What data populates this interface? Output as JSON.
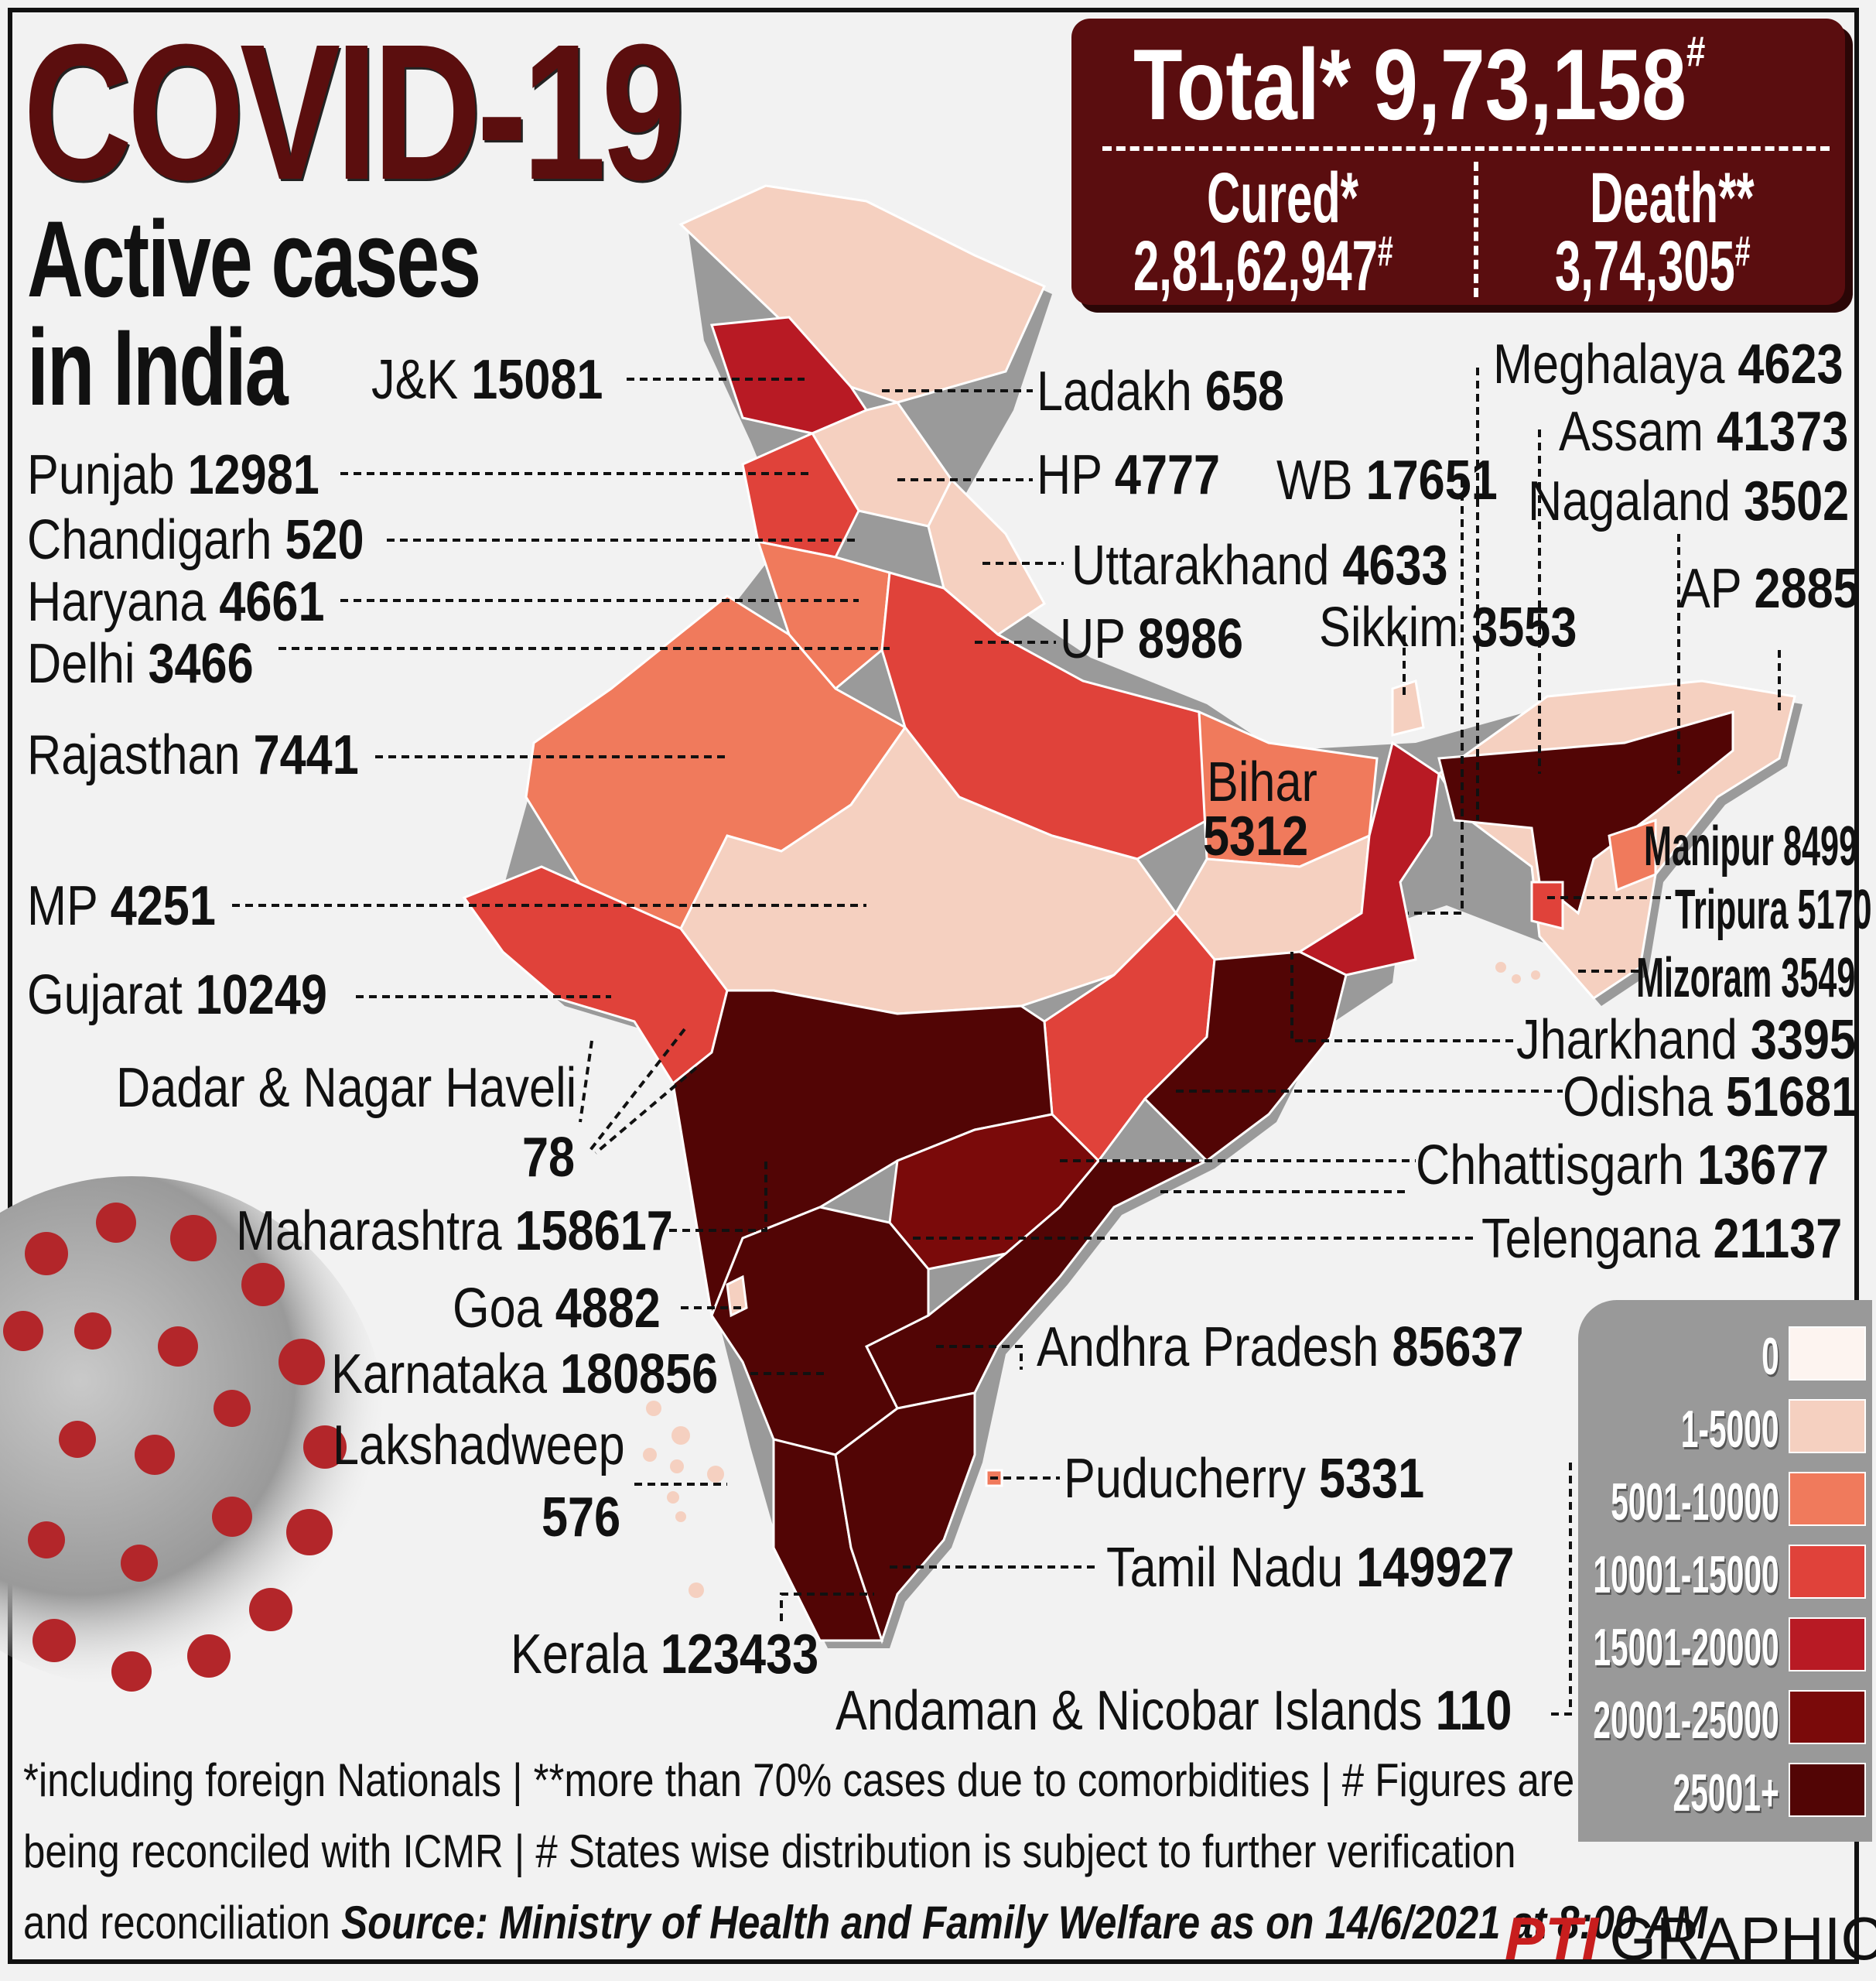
{
  "header": {
    "title": "COVID-19",
    "subtitle_line1": "Active cases",
    "subtitle_line2": "in India"
  },
  "totals": {
    "total_label": "Total*",
    "total_value": "9,73,158",
    "total_mark": "#",
    "cured_label": "Cured*",
    "cured_value": "2,81,62,947",
    "cured_mark": "#",
    "death_label": "Death**",
    "death_value": "3,74,305",
    "death_mark": "#"
  },
  "states": {
    "jk": {
      "name": "J&K",
      "value": "15081"
    },
    "ladakh": {
      "name": "Ladakh",
      "value": "658"
    },
    "punjab": {
      "name": "Punjab",
      "value": "12981"
    },
    "hp": {
      "name": "HP",
      "value": "4777"
    },
    "chandigarh": {
      "name": "Chandigarh",
      "value": "520"
    },
    "haryana": {
      "name": "Haryana",
      "value": "4661"
    },
    "uttarakhand": {
      "name": "Uttarakhand",
      "value": "4633"
    },
    "delhi": {
      "name": "Delhi",
      "value": "3466"
    },
    "up": {
      "name": "UP",
      "value": "8986"
    },
    "rajasthan": {
      "name": "Rajasthan",
      "value": "7441"
    },
    "mp": {
      "name": "MP",
      "value": "4251"
    },
    "gujarat": {
      "name": "Gujarat",
      "value": "10249"
    },
    "dnh": {
      "name": "Dadar & Nagar Haveli",
      "value": "78"
    },
    "maharashtra": {
      "name": "Maharashtra",
      "value": "158617"
    },
    "goa": {
      "name": "Goa",
      "value": "4882"
    },
    "karnataka": {
      "name": "Karnataka",
      "value": "180856"
    },
    "lakshadweep": {
      "name": "Lakshadweep",
      "value": "576"
    },
    "kerala": {
      "name": "Kerala",
      "value": "123433"
    },
    "wb": {
      "name": "WB",
      "value": "17651"
    },
    "meghalaya": {
      "name": "Meghalaya",
      "value": "4623"
    },
    "assam": {
      "name": "Assam",
      "value": "41373"
    },
    "nagaland": {
      "name": "Nagaland",
      "value": "3502"
    },
    "ap_arunachal": {
      "name": "AP",
      "value": "2885"
    },
    "sikkim": {
      "name": "Sikkim",
      "value": "3553"
    },
    "bihar": {
      "name": "Bihar",
      "value": "5312"
    },
    "manipur": {
      "name": "Manipur",
      "value": "8499"
    },
    "tripura": {
      "name": "Tripura",
      "value": "5170"
    },
    "mizoram": {
      "name": "Mizoram",
      "value": "3549"
    },
    "jharkhand": {
      "name": "Jharkhand",
      "value": "3395"
    },
    "odisha": {
      "name": "Odisha",
      "value": "51681"
    },
    "chhattisgarh": {
      "name": "Chhattisgarh",
      "value": "13677"
    },
    "telengana": {
      "name": "Telengana",
      "value": "21137"
    },
    "andhra": {
      "name": "Andhra Pradesh",
      "value": "85637"
    },
    "puducherry": {
      "name": "Puducherry",
      "value": "5331"
    },
    "tamilnadu": {
      "name": "Tamil Nadu",
      "value": "149927"
    },
    "andaman": {
      "name": "Andaman & Nicobar Islands",
      "value": "110"
    }
  },
  "legend": [
    {
      "label": "0",
      "color": "#fdf4f0"
    },
    {
      "label": "1-5000",
      "color": "#f5d0c0"
    },
    {
      "label": "5001-10000",
      "color": "#f07a5c"
    },
    {
      "label": "10001-15000",
      "color": "#e0423a"
    },
    {
      "label": "15001-20000",
      "color": "#b81a24"
    },
    {
      "label": "20001-25000",
      "color": "#7a0a0a"
    },
    {
      "label": "25001+",
      "color": "#520505"
    }
  ],
  "footnote": {
    "line1": "*including foreign Nationals | **more than 70% cases due to comorbidities | # Figures are",
    "line2": "being reconciled with ICMR  | # States wise distribution is subject to further verification",
    "line3_plain": "and reconciliation ",
    "source": "Source: Ministry of Health and Family Welfare as on 14/6/2021 at 8:00 AM"
  },
  "credit": {
    "logo": "PTI",
    "text": "GRAPHICS"
  },
  "decor": {
    "virus_icon": "coronavirus-icon",
    "map_icon": "india-map"
  }
}
